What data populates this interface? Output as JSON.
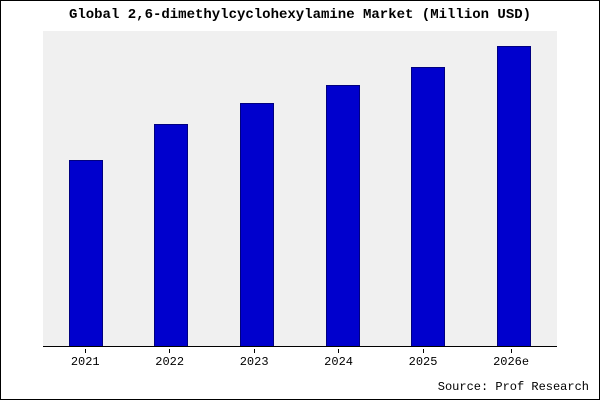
{
  "chart_data": {
    "type": "bar",
    "title": "Global 2,6-dimethylcyclohexylamine Market (Million USD)",
    "categories": [
      "2021",
      "2022",
      "2023",
      "2024",
      "2025",
      "2026e"
    ],
    "values": [
      62,
      74,
      81,
      87,
      93,
      100
    ],
    "xlabel": "",
    "ylabel": "",
    "ylim": [
      0,
      105
    ],
    "bar_color": "#0000cd",
    "bar_border_color": "#000080",
    "plot_background": "#f0f0f0",
    "grid": "off",
    "legend": "none"
  },
  "source": {
    "text": "Source: Prof Research"
  }
}
